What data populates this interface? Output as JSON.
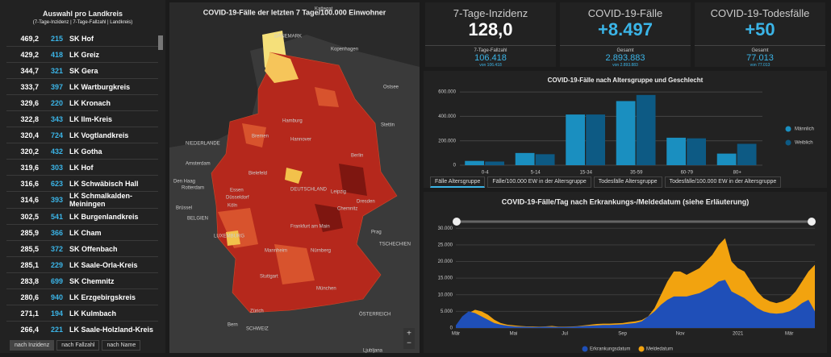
{
  "list": {
    "title": "Auswahl pro Landkreis",
    "subtitle": "(7-Tage-Inzidenz | 7-Tage-Fallzahl | Landkreis)",
    "rows": [
      [
        "469,2",
        "215",
        "SK Hof"
      ],
      [
        "429,2",
        "418",
        "LK Greiz"
      ],
      [
        "344,7",
        "321",
        "SK Gera"
      ],
      [
        "333,7",
        "397",
        "LK Wartburgkreis"
      ],
      [
        "329,6",
        "220",
        "LK Kronach"
      ],
      [
        "322,8",
        "343",
        "LK Ilm-Kreis"
      ],
      [
        "320,4",
        "724",
        "LK Vogtlandkreis"
      ],
      [
        "320,2",
        "432",
        "LK Gotha"
      ],
      [
        "319,6",
        "303",
        "LK Hof"
      ],
      [
        "316,6",
        "623",
        "LK Schwäbisch Hall"
      ],
      [
        "314,6",
        "393",
        "LK Schmalkalden-Meiningen"
      ],
      [
        "302,5",
        "541",
        "LK Burgenlandkreis"
      ],
      [
        "285,9",
        "366",
        "LK Cham"
      ],
      [
        "285,5",
        "372",
        "SK Offenbach"
      ],
      [
        "285,1",
        "229",
        "LK Saale-Orla-Kreis"
      ],
      [
        "283,8",
        "699",
        "SK Chemnitz"
      ],
      [
        "280,6",
        "940",
        "LK Erzgebirgskreis"
      ],
      [
        "271,1",
        "194",
        "LK Kulmbach"
      ],
      [
        "266,4",
        "221",
        "LK Saale-Holzland-Kreis"
      ]
    ],
    "tabs": [
      "nach Inzidenz",
      "nach Fallzahl",
      "nach Name"
    ]
  },
  "map": {
    "title": "COVID-19-Fälle der letzten 7 Tage/100.000 Einwohner",
    "labels": [
      "DÄNEMARK",
      "Kattegat",
      "Kopenhagen",
      "Ostsee",
      "Hamburg",
      "Bremen",
      "Hannover",
      "Berlin",
      "Stettin",
      "NIEDERLANDE",
      "Amsterdam",
      "Den Haag",
      "Rotterdam",
      "Bielefeld",
      "Essen",
      "Düsseldorf",
      "Köln",
      "BELGIEN",
      "Brüssel",
      "LUXEMBURG",
      "Frankfurt am Main",
      "Mannheim",
      "Nürnberg",
      "Leipzig",
      "Dresden",
      "Chemnitz",
      "Prag",
      "TSCHECHIEN",
      "Stuttgart",
      "München",
      "Zürich",
      "Bern",
      "SCHWEIZ",
      "ÖSTERREICH",
      "DEUTSCHLAND",
      "Ljubljana"
    ]
  },
  "kpis": [
    {
      "title": "7-Tage-Inzidenz",
      "value": "128,0",
      "sub_label": "7-Tage-Fallzahl",
      "sub_value": "106.418",
      "of": "von 106.418"
    },
    {
      "title": "COVID-19-Fälle",
      "value": "+8.497",
      "sub_label": "Gesamt",
      "sub_value": "2.893.883",
      "of": "von 2.893.883"
    },
    {
      "title": "COVID-19-Todesfälle",
      "value": "+50",
      "sub_label": "Gesamt",
      "sub_value": "77.013",
      "of": "von 77.013"
    }
  ],
  "chart_data": [
    {
      "type": "bar",
      "title": "COVID-19-Fälle nach Altersgruppe und Geschlecht",
      "categories": [
        "0-4",
        "5-14",
        "15-34",
        "35-59",
        "60-79",
        "80+"
      ],
      "series": [
        {
          "name": "Männlich",
          "color": "#1a8fc0",
          "values": [
            35000,
            100000,
            415000,
            525000,
            225000,
            95000
          ]
        },
        {
          "name": "Weiblich",
          "color": "#0d5a84",
          "values": [
            30000,
            90000,
            415000,
            575000,
            220000,
            175000
          ]
        }
      ],
      "ylim": [
        0,
        640000
      ],
      "yticks": [
        0,
        {
          "value": 200000,
          "label": "200.000"
        },
        {
          "value": 400000,
          "label": "400.000"
        },
        {
          "value": 600000,
          "label": "600.000"
        }
      ],
      "grid": true,
      "tabs": [
        "Fälle Altersgruppe",
        "Fälle/100.000 EW in der Altersgruppe",
        "Todesfälle Altersgruppe",
        "Todesfälle/100.000 EW in der Altersgruppe"
      ]
    },
    {
      "type": "area",
      "title": "COVID-19-Fälle/Tag nach Erkrankungs-/Meldedatum (siehe Erläuterung)",
      "categories": [
        "Mär",
        null,
        null,
        null,
        null,
        null,
        null,
        null,
        null,
        "Mai",
        null,
        null,
        null,
        null,
        null,
        null,
        null,
        "Jul",
        null,
        null,
        null,
        null,
        null,
        null,
        null,
        null,
        "Sep",
        null,
        null,
        null,
        null,
        null,
        null,
        null,
        null,
        "Nov",
        null,
        null,
        null,
        null,
        null,
        null,
        null,
        null,
        "2021",
        null,
        null,
        null,
        null,
        null,
        null,
        null,
        "Mär",
        null,
        null,
        null,
        null
      ],
      "series": [
        {
          "name": "Meldedatum",
          "color": "#f2a30f",
          "values": [
            500,
            2500,
            4500,
            5500,
            5000,
            4000,
            2500,
            1500,
            1000,
            800,
            600,
            500,
            450,
            400,
            500,
            600,
            400,
            400,
            450,
            550,
            800,
            1000,
            1200,
            1300,
            1300,
            1400,
            1500,
            1800,
            2000,
            2400,
            3500,
            6000,
            10000,
            14000,
            17000,
            17000,
            16000,
            17000,
            18000,
            20000,
            22000,
            25000,
            27000,
            20000,
            18000,
            17000,
            14000,
            11000,
            9000,
            8000,
            7500,
            8000,
            9000,
            11000,
            14000,
            17000,
            19000
          ]
        },
        {
          "name": "Erkrankungsdatum",
          "color": "#1f4fb8",
          "values": [
            800,
            3500,
            5000,
            4500,
            3500,
            2500,
            1500,
            1000,
            700,
            500,
            400,
            350,
            300,
            300,
            400,
            350,
            300,
            300,
            350,
            450,
            600,
            700,
            800,
            900,
            900,
            1000,
            1100,
            1300,
            1500,
            2000,
            3500,
            5000,
            7000,
            8500,
            9500,
            9500,
            9500,
            10000,
            10500,
            11500,
            12500,
            14000,
            14500,
            11000,
            10000,
            9000,
            7500,
            6000,
            5000,
            4500,
            4300,
            4500,
            5000,
            6000,
            7500,
            8500,
            5000
          ]
        }
      ],
      "ylim": [
        0,
        32000
      ],
      "yticks": [
        0,
        {
          "value": 5000,
          "label": "5.000"
        },
        {
          "value": 10000,
          "label": "10.000"
        },
        {
          "value": 15000,
          "label": "15.000"
        },
        {
          "value": 20000,
          "label": "20.000"
        },
        {
          "value": 25000,
          "label": "25.000"
        },
        {
          "value": 30000,
          "label": "30.000"
        }
      ],
      "grid": true
    }
  ]
}
